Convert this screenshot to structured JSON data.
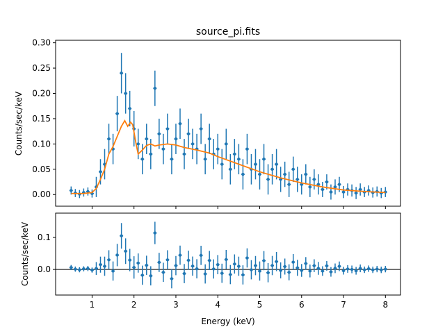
{
  "chart_data": [
    {
      "type": "scatter",
      "title": "source_pi.fits",
      "xlabel": "",
      "ylabel": "Counts/sec/keV",
      "xlim": [
        0.13,
        8.36
      ],
      "ylim": [
        -0.023,
        0.305
      ],
      "xticks": [
        1,
        2,
        3,
        4,
        5,
        6,
        7,
        8
      ],
      "yticks": [
        "0.00",
        "0.05",
        "0.10",
        "0.15",
        "0.20",
        "0.25",
        "0.30"
      ],
      "grid": false,
      "colors": {
        "data": "#1f77b4",
        "model": "#ff7f0e"
      },
      "data": {
        "x": [
          0.5,
          0.6,
          0.7,
          0.8,
          0.9,
          1.0,
          1.1,
          1.2,
          1.3,
          1.4,
          1.5,
          1.6,
          1.7,
          1.8,
          1.9,
          2.0,
          2.1,
          2.2,
          2.3,
          2.4,
          2.5,
          2.6,
          2.7,
          2.8,
          2.9,
          3.0,
          3.1,
          3.2,
          3.3,
          3.4,
          3.5,
          3.6,
          3.7,
          3.8,
          3.9,
          4.0,
          4.1,
          4.2,
          4.3,
          4.4,
          4.5,
          4.6,
          4.7,
          4.8,
          4.9,
          5.0,
          5.1,
          5.2,
          5.3,
          5.4,
          5.5,
          5.6,
          5.7,
          5.8,
          5.9,
          6.0,
          6.1,
          6.2,
          6.3,
          6.4,
          6.5,
          6.6,
          6.7,
          6.8,
          6.9,
          7.0,
          7.1,
          7.2,
          7.3,
          7.4,
          7.5,
          7.6,
          7.7,
          7.8,
          7.9,
          8.0
        ],
        "y": [
          0.008,
          0.003,
          0.001,
          0.004,
          0.006,
          0.002,
          0.015,
          0.045,
          0.06,
          0.11,
          0.09,
          0.16,
          0.24,
          0.2,
          0.17,
          0.13,
          0.1,
          0.07,
          0.11,
          0.08,
          0.21,
          0.12,
          0.09,
          0.13,
          0.07,
          0.11,
          0.14,
          0.08,
          0.12,
          0.1,
          0.09,
          0.13,
          0.07,
          0.11,
          0.08,
          0.09,
          0.06,
          0.1,
          0.05,
          0.08,
          0.07,
          0.04,
          0.09,
          0.05,
          0.06,
          0.04,
          0.07,
          0.03,
          0.05,
          0.06,
          0.03,
          0.04,
          0.02,
          0.05,
          0.03,
          0.02,
          0.04,
          0.015,
          0.03,
          0.02,
          0.01,
          0.025,
          0.005,
          0.015,
          0.02,
          0.005,
          0.01,
          0.008,
          0.003,
          0.01,
          0.005,
          0.008,
          0.004,
          0.006,
          0.003,
          0.005
        ],
        "yerr": [
          0.008,
          0.008,
          0.008,
          0.008,
          0.008,
          0.008,
          0.02,
          0.025,
          0.03,
          0.03,
          0.03,
          0.035,
          0.04,
          0.04,
          0.035,
          0.035,
          0.03,
          0.03,
          0.03,
          0.03,
          0.035,
          0.03,
          0.03,
          0.03,
          0.03,
          0.03,
          0.03,
          0.03,
          0.03,
          0.03,
          0.03,
          0.03,
          0.03,
          0.03,
          0.03,
          0.03,
          0.03,
          0.03,
          0.03,
          0.03,
          0.03,
          0.03,
          0.03,
          0.03,
          0.03,
          0.03,
          0.03,
          0.03,
          0.03,
          0.03,
          0.025,
          0.025,
          0.025,
          0.025,
          0.025,
          0.02,
          0.02,
          0.02,
          0.02,
          0.02,
          0.015,
          0.015,
          0.015,
          0.015,
          0.015,
          0.012,
          0.012,
          0.012,
          0.012,
          0.012,
          0.01,
          0.01,
          0.01,
          0.01,
          0.01,
          0.01
        ]
      },
      "model": {
        "x": [
          0.5,
          0.8,
          1.0,
          1.1,
          1.2,
          1.3,
          1.4,
          1.5,
          1.6,
          1.7,
          1.78,
          1.85,
          1.92,
          1.97,
          2.05,
          2.1,
          2.2,
          2.3,
          2.4,
          2.5,
          2.6,
          2.8,
          3.0,
          3.2,
          3.5,
          3.8,
          4.0,
          4.5,
          5.0,
          5.5,
          6.0,
          6.5,
          7.0,
          7.5,
          8.0
        ],
        "y": [
          0.002,
          0.002,
          0.004,
          0.012,
          0.03,
          0.05,
          0.08,
          0.095,
          0.115,
          0.135,
          0.146,
          0.135,
          0.143,
          0.138,
          0.1,
          0.08,
          0.088,
          0.097,
          0.1,
          0.096,
          0.098,
          0.1,
          0.098,
          0.093,
          0.088,
          0.082,
          0.075,
          0.06,
          0.045,
          0.033,
          0.023,
          0.015,
          0.009,
          0.006,
          0.004
        ]
      }
    },
    {
      "type": "scatter",
      "title": "",
      "xlabel": "Energy (keV)",
      "ylabel": "Counts/sec/keV",
      "xlim": [
        0.13,
        8.36
      ],
      "ylim": [
        -0.08,
        0.176
      ],
      "xticks": [
        "1",
        "2",
        "3",
        "4",
        "5",
        "6",
        "7",
        "8"
      ],
      "yticks": [
        "0.0",
        "0.1"
      ],
      "grid": false,
      "series": "residuals (data minus model)",
      "zero_line": true
    }
  ]
}
